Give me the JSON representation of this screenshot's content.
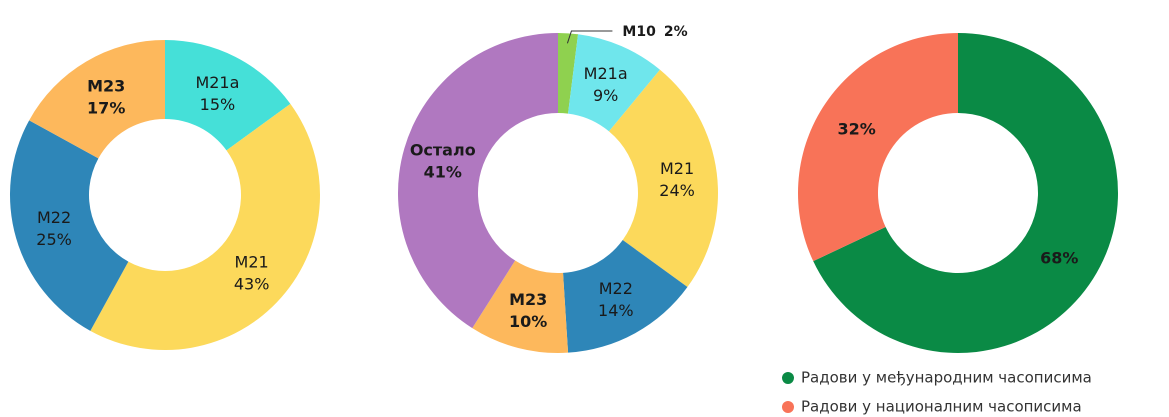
{
  "chart_data": [
    {
      "type": "donut",
      "categories": [
        "M21a",
        "M21",
        "M22",
        "M23"
      ],
      "values": [
        15,
        43,
        25,
        17
      ],
      "value_labels": [
        "15%",
        "43%",
        "25%",
        "17%"
      ],
      "colors": [
        "#45e0d8",
        "#fcd95b",
        "#2e86b8",
        "#fdb85c"
      ]
    },
    {
      "type": "donut",
      "categories": [
        "M10",
        "M21a",
        "M21",
        "M22",
        "M23",
        "Остало"
      ],
      "values": [
        2,
        9,
        24,
        14,
        10,
        41
      ],
      "value_labels": [
        "2%",
        "9%",
        "24%",
        "14%",
        "10%",
        "41%"
      ],
      "colors": [
        "#8fd14f",
        "#6fe6ec",
        "#fcd95b",
        "#2e86b8",
        "#fdb85c",
        "#b078c0"
      ]
    },
    {
      "type": "donut",
      "categories": [
        "Радови у међународним часописима",
        "Радови у националним часописима"
      ],
      "values": [
        68,
        32
      ],
      "value_labels": [
        "68%",
        "32%"
      ],
      "colors": [
        "#0a8a45",
        "#f87358"
      ],
      "legend": true
    }
  ]
}
